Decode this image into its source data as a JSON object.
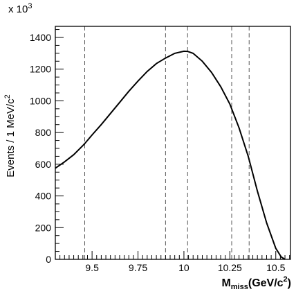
{
  "chart_data": {
    "type": "line",
    "title": "",
    "xlabel_main": "M",
    "xlabel_sub": "miss",
    "xlabel_unit": "(GeV/c",
    "xlabel_sup": "2",
    "xlabel_close": ")",
    "ylabel_main": "Events / 1 MeV/c",
    "ylabel_sup": "2",
    "y_multiplier_base": "x 10",
    "y_multiplier_exp": "3",
    "xlim": [
      9.3,
      10.58
    ],
    "ylim": [
      0,
      1470
    ],
    "x_ticks": [
      {
        "value": 9.5,
        "label": "9.5"
      },
      {
        "value": 9.75,
        "label": "9.75"
      },
      {
        "value": 10.0,
        "label": "10"
      },
      {
        "value": 10.25,
        "label": "10.25"
      },
      {
        "value": 10.5,
        "label": "10.5"
      }
    ],
    "y_ticks": [
      {
        "value": 0,
        "label": "0"
      },
      {
        "value": 200,
        "label": "200"
      },
      {
        "value": 400,
        "label": "400"
      },
      {
        "value": 600,
        "label": "600"
      },
      {
        "value": 800,
        "label": "800"
      },
      {
        "value": 1000,
        "label": "1000"
      },
      {
        "value": 1200,
        "label": "1200"
      },
      {
        "value": 1400,
        "label": "1400"
      }
    ],
    "vertical_dashed_lines_x": [
      9.46,
      9.9,
      10.02,
      10.26,
      10.355
    ],
    "series": [
      {
        "x": [
          9.3,
          9.35,
          9.4,
          9.45,
          9.46,
          9.5,
          9.55,
          9.6,
          9.65,
          9.7,
          9.75,
          9.8,
          9.85,
          9.9,
          9.95,
          10.0,
          10.02,
          10.05,
          10.1,
          10.15,
          10.2,
          10.25,
          10.3,
          10.35,
          10.4,
          10.45,
          10.5,
          10.53,
          10.55
        ],
        "y": [
          575,
          615,
          660,
          718,
          730,
          785,
          850,
          920,
          990,
          1060,
          1125,
          1185,
          1235,
          1270,
          1300,
          1313,
          1312,
          1300,
          1250,
          1180,
          1090,
          980,
          830,
          650,
          430,
          230,
          70,
          15,
          0
        ]
      }
    ]
  }
}
